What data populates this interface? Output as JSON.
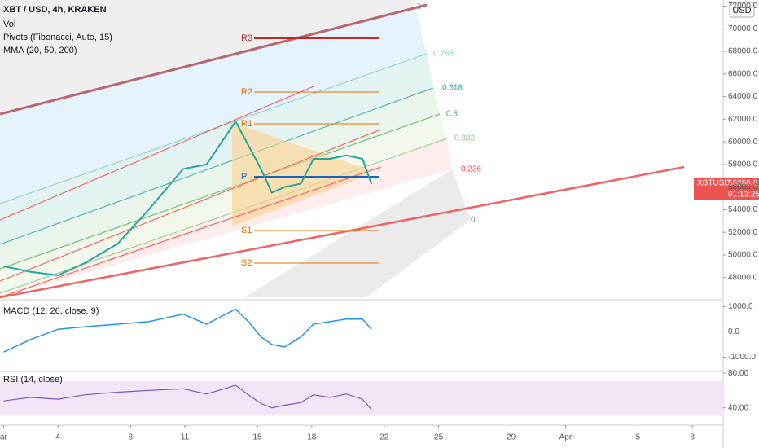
{
  "chart_data": {
    "type": "line",
    "title": "XBT / USD, 4h, KRAKEN",
    "indicators": [
      "Vol",
      "Pivots (Fibonacci, Auto, 15)",
      "MMA (20, 50, 200)"
    ],
    "currency_button": "USD",
    "x": [
      1,
      2.5,
      4,
      5.5,
      7.3,
      9,
      10.9,
      12.2,
      13.8,
      14.5,
      15.2,
      15.8,
      16.5,
      17.4,
      18.1,
      19,
      19.9,
      20.8,
      21.3
    ],
    "series": [
      {
        "name": "XBTUSD",
        "color": "#26a69a",
        "values": [
          49000,
          48500,
          48200,
          49300,
          51000,
          54000,
          57600,
          58000,
          61800,
          59700,
          57600,
          55500,
          56000,
          56300,
          58500,
          58500,
          58800,
          58500,
          56268.8
        ]
      }
    ],
    "last_price_tag": {
      "symbol": "XBTUSD",
      "price": "56268.8",
      "countdown": "01:13:25"
    },
    "xlim": [
      0.8,
      40.7
    ],
    "xticks": [
      {
        "value": 1,
        "label": "ar"
      },
      4,
      8,
      11,
      15,
      18,
      22,
      25,
      29,
      {
        "value": 32,
        "label": "Apr"
      },
      {
        "value": 36,
        "label": "5"
      },
      {
        "value": 39,
        "label": "8"
      }
    ],
    "ylim": [
      46040,
      72540
    ],
    "yticks": [
      {
        "value": 48000,
        "label": "48000.0"
      },
      {
        "value": 50000,
        "label": "50000.0"
      },
      {
        "value": 52000,
        "label": "52000.0"
      },
      {
        "value": 54000,
        "label": "54000.0"
      },
      {
        "value": 56000,
        "label": "56000.0"
      },
      {
        "value": 58000,
        "label": "58000.0"
      },
      {
        "value": 60000,
        "label": "60000.0"
      },
      {
        "value": 62000,
        "label": "62000.0"
      },
      {
        "value": 64000,
        "label": "64000.0"
      },
      {
        "value": 66000,
        "label": "66000.0"
      },
      {
        "value": 68000,
        "label": "68000.0"
      },
      {
        "value": 70000,
        "label": "70000.0"
      },
      {
        "value": 72000,
        "label": "72000.0"
      }
    ],
    "fib_levels": [
      "1",
      "0.786",
      "0.618",
      "0.5",
      "0.382",
      "0.236",
      "0"
    ],
    "pivots": [
      "R3",
      "R2",
      "R1",
      "P",
      "S1",
      "S2"
    ],
    "macd": {
      "title": "MACD (12, 26, close, 9)",
      "color": "#2196f3",
      "values": [
        -800,
        -300,
        100,
        200,
        300,
        400,
        700,
        300,
        900,
        400,
        -200,
        -500,
        -600,
        -200,
        300,
        400,
        500,
        500,
        100
      ],
      "ylim": [
        -1567,
        1267
      ],
      "yticks": [
        {
          "value": 1000,
          "label": "1000.0"
        },
        {
          "value": 0,
          "label": "0.0"
        },
        {
          "value": -1000,
          "label": "-1000.0"
        }
      ]
    },
    "rsi": {
      "title": "RSI (14, close)",
      "color": "#7e57c2",
      "values": [
        48,
        52,
        50,
        55,
        58,
        60,
        62,
        56,
        66,
        55,
        45,
        40,
        43,
        46,
        55,
        52,
        56,
        50,
        38
      ],
      "ylim": [
        20,
        82
      ],
      "yticks": [
        {
          "value": 80,
          "label": "80.00"
        },
        {
          "value": 40,
          "label": "40.00"
        }
      ]
    }
  }
}
